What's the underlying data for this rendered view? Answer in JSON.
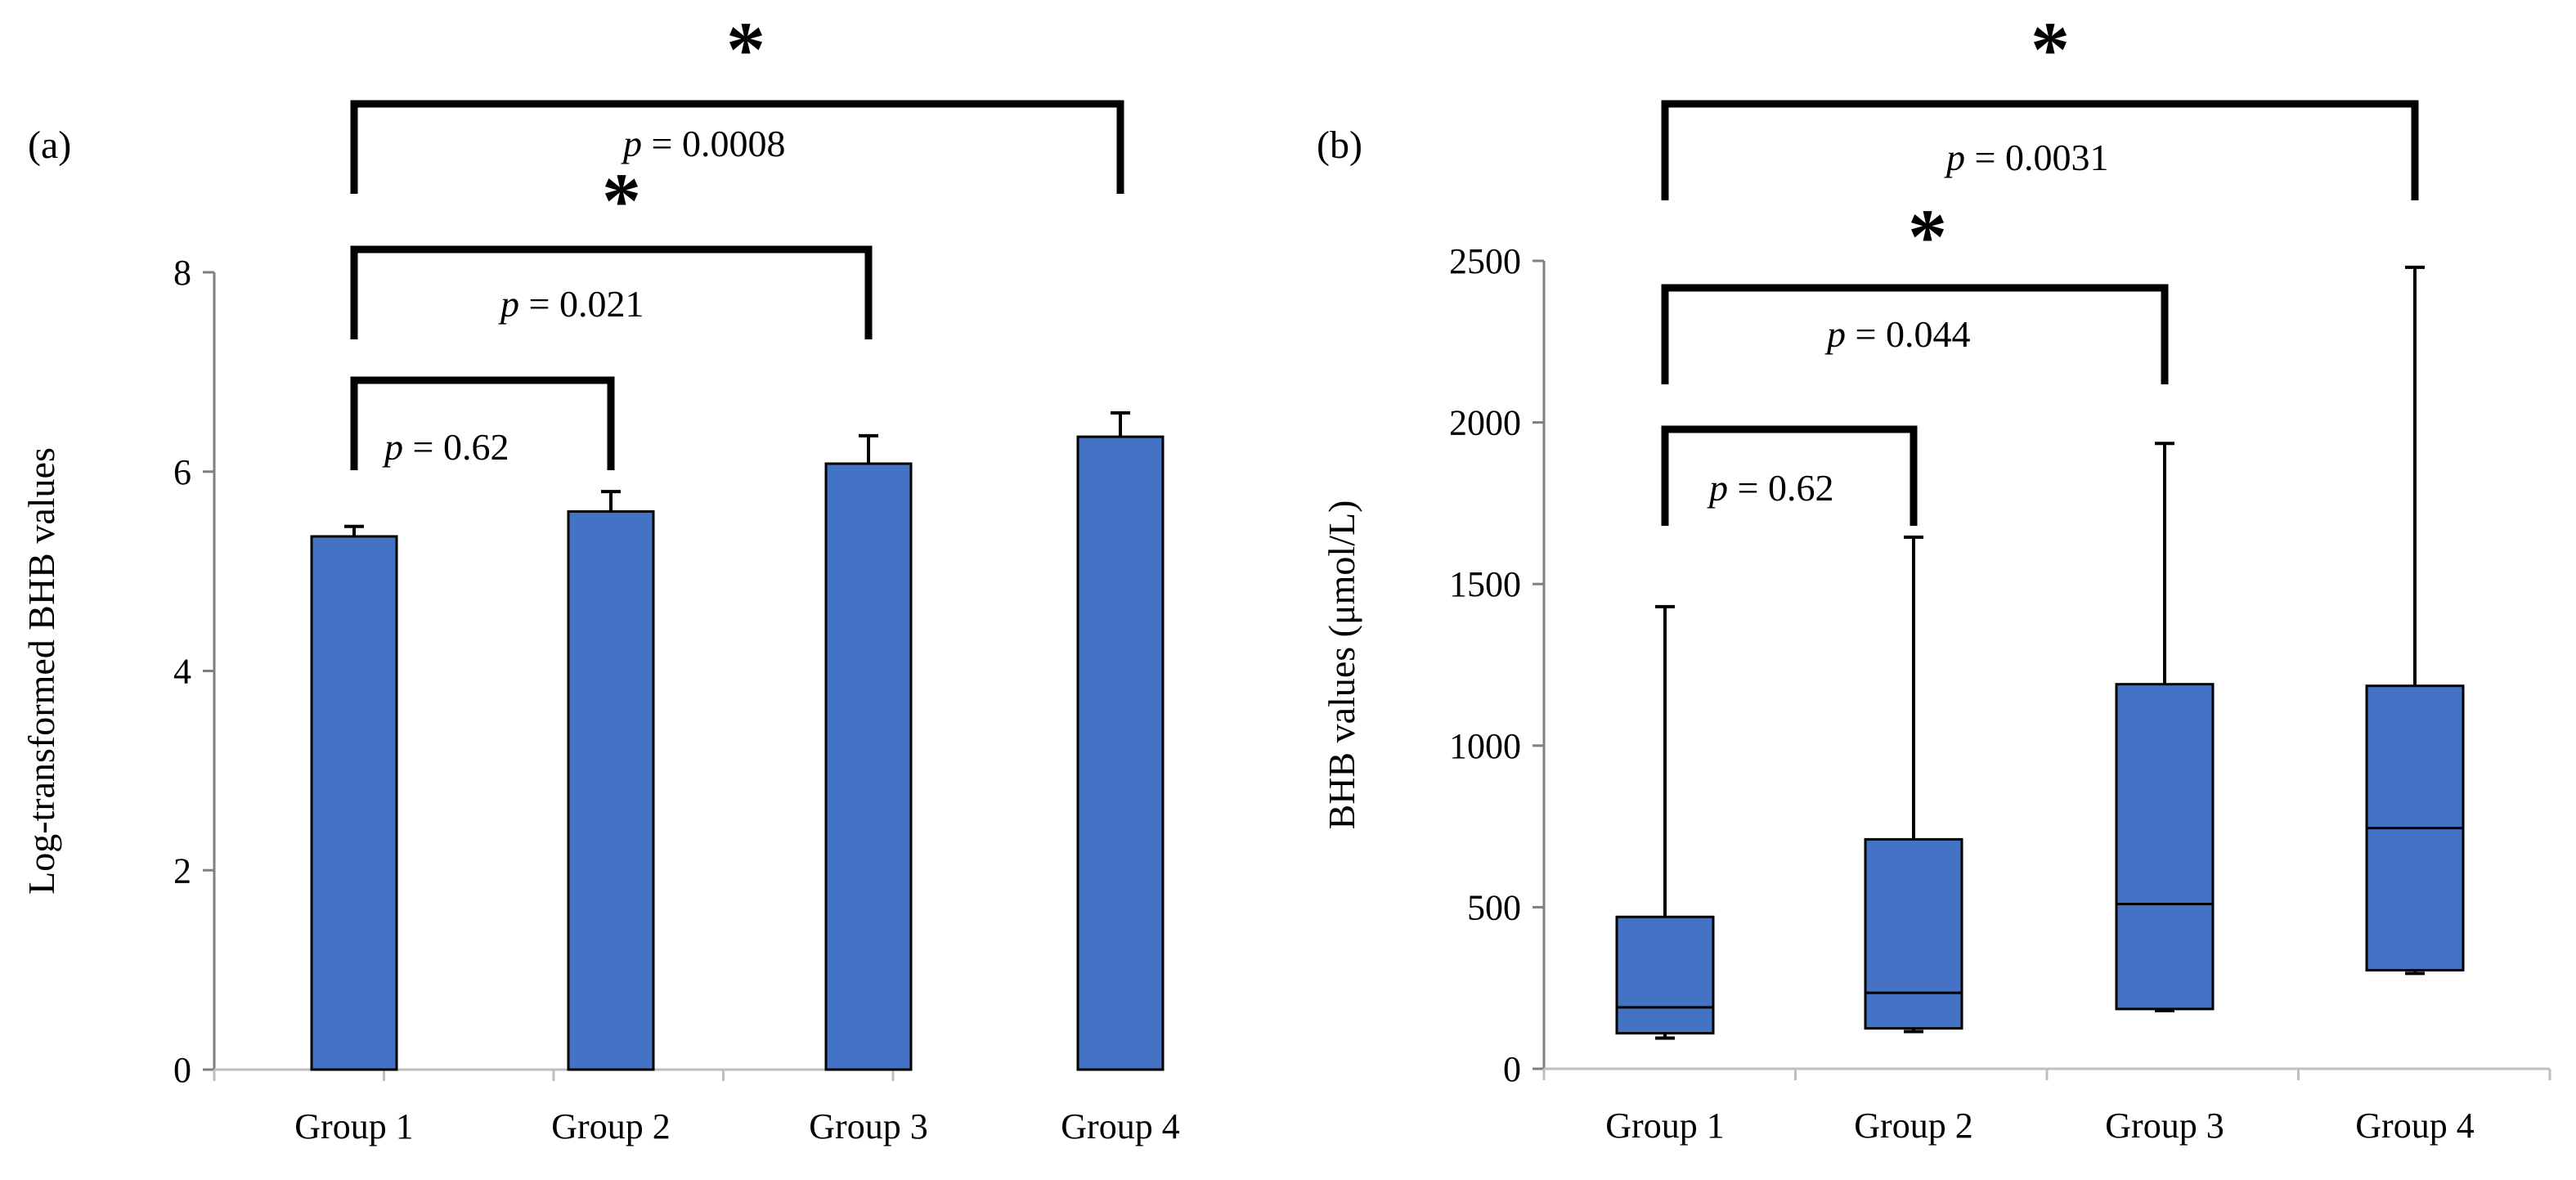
{
  "chart_data": [
    {
      "panel_label": "(a)",
      "type": "bar",
      "categories": [
        "Group 1",
        "Group 2",
        "Group 3",
        "Group 4"
      ],
      "values": [
        5.35,
        5.6,
        6.08,
        6.35
      ],
      "error_upper": [
        0.1,
        0.2,
        0.28,
        0.24
      ],
      "ylabel": "Log-transformed BHB values",
      "xlabel": "",
      "ylim": [
        0,
        8
      ],
      "yticks": [
        "0",
        "2",
        "4",
        "6",
        "8"
      ],
      "bar_color": "#4472c4",
      "comparisons": [
        {
          "from": 0,
          "to": 1,
          "p_prefix": "p",
          "p_value": " = 0.62",
          "star": "",
          "level": 1
        },
        {
          "from": 0,
          "to": 2,
          "p_prefix": "p",
          "p_value": " = 0.021",
          "star": "*",
          "level": 2
        },
        {
          "from": 0,
          "to": 3,
          "p_prefix": "p",
          "p_value": " = 0.0008",
          "star": "*",
          "level": 3
        }
      ]
    },
    {
      "panel_label": "(b)",
      "type": "box",
      "categories": [
        "Group 1",
        "Group 2",
        "Group 3",
        "Group 4"
      ],
      "boxes": [
        {
          "min": 95,
          "q1": 110,
          "median": 190,
          "q3": 470,
          "max": 1430
        },
        {
          "min": 115,
          "q1": 125,
          "median": 235,
          "q3": 710,
          "max": 1645
        },
        {
          "min": 180,
          "q1": 185,
          "median": 510,
          "q3": 1190,
          "max": 1935
        },
        {
          "min": 295,
          "q1": 305,
          "median": 745,
          "q3": 1185,
          "max": 2480
        }
      ],
      "ylabel": "BHB values (μmol/L)",
      "xlabel": "",
      "ylim": [
        0,
        2500
      ],
      "yticks": [
        "0",
        "500",
        "1000",
        "1500",
        "2000",
        "2500"
      ],
      "box_color": "#4472c4",
      "comparisons": [
        {
          "from": 0,
          "to": 1,
          "p_prefix": "p",
          "p_value": " = 0.62",
          "star": "",
          "level": 1
        },
        {
          "from": 0,
          "to": 2,
          "p_prefix": "p",
          "p_value": " = 0.044",
          "star": "*",
          "level": 2
        },
        {
          "from": 0,
          "to": 3,
          "p_prefix": "p",
          "p_value": " = 0.0031",
          "star": "*",
          "level": 3
        }
      ]
    }
  ]
}
